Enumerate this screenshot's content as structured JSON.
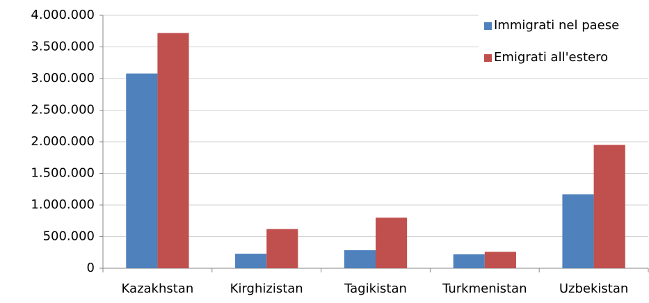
{
  "chart_data": {
    "type": "bar",
    "categories": [
      "Kazakhstan",
      "Kirghizistan",
      "Tagikistan",
      "Turkmenistan",
      "Uzbekistan"
    ],
    "series": [
      {
        "name": "Immigrati nel paese",
        "color": "#4f81bd",
        "values": [
          3080000,
          230000,
          285000,
          220000,
          1170000
        ]
      },
      {
        "name": "Emigrati all'estero",
        "color": "#c0504d",
        "values": [
          3720000,
          620000,
          800000,
          260000,
          1950000
        ]
      }
    ],
    "ylim": [
      0,
      4000000
    ],
    "yticks": [
      0,
      {
        "value": 500000,
        "label": "500.000"
      },
      {
        "value": 1000000,
        "label": "1.000.000"
      },
      {
        "value": 1500000,
        "label": "1.500.000"
      },
      {
        "value": 2000000,
        "label": "2.000.000"
      },
      {
        "value": 2500000,
        "label": "2.500.000"
      },
      {
        "value": 3000000,
        "label": "3.000.000"
      },
      {
        "value": 3500000,
        "label": "3.500.000"
      },
      {
        "value": 4000000,
        "label": "4.000.000"
      }
    ],
    "grid": true,
    "legend": "top-right"
  }
}
